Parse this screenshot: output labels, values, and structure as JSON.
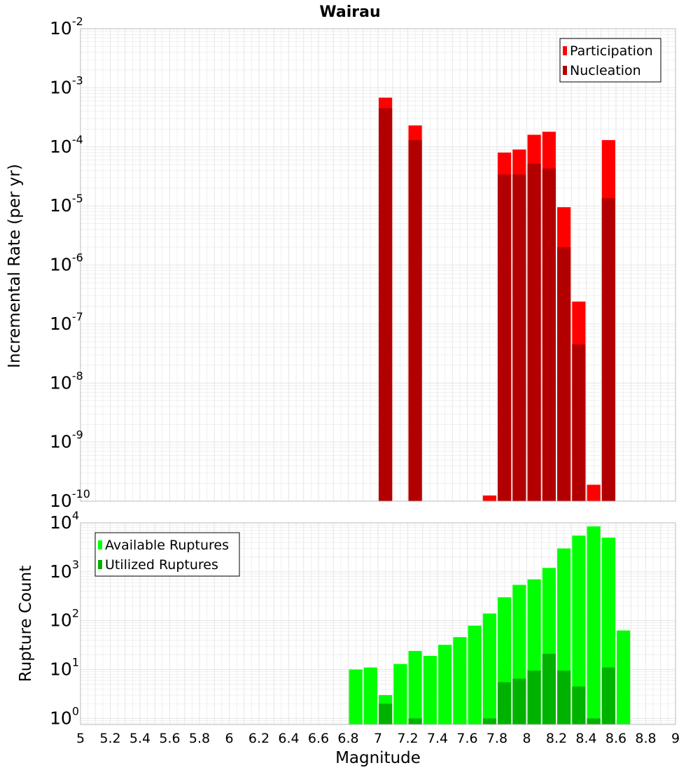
{
  "title": "Wairau",
  "colors": {
    "participation": "#ff0000",
    "nucleation": "#b20000",
    "available": "#00ff00",
    "utilized": "#00b200",
    "grid": "#e6e6e6",
    "frame": "#bbbbbb"
  },
  "chart_data": [
    {
      "type": "bar",
      "panel": "top",
      "ylabel": "Incremental Rate (per yr)",
      "yscale": "log",
      "ylim": [
        1e-10,
        0.01
      ],
      "xlim": [
        5,
        9
      ],
      "grid": true,
      "legend_position": "top-right",
      "y_ticks": [
        {
          "base": "10",
          "exp": "-2",
          "value": 0.01
        },
        {
          "base": "10",
          "exp": "-3",
          "value": 0.001
        },
        {
          "base": "10",
          "exp": "-4",
          "value": 0.0001
        },
        {
          "base": "10",
          "exp": "-5",
          "value": 1e-05
        },
        {
          "base": "10",
          "exp": "-6",
          "value": 1e-06
        },
        {
          "base": "10",
          "exp": "-7",
          "value": 1e-07
        },
        {
          "base": "10",
          "exp": "-8",
          "value": 1e-08
        },
        {
          "base": "10",
          "exp": "-9",
          "value": 1e-09
        },
        {
          "base": "10",
          "exp": "-10",
          "value": 1e-10
        }
      ],
      "series": [
        {
          "name": "Participation",
          "x": [
            7.05,
            7.25,
            7.75,
            7.85,
            7.95,
            8.05,
            8.15,
            8.25,
            8.35,
            8.45,
            8.55
          ],
          "values": [
            0.00068,
            0.00023,
            1.25e-10,
            8e-05,
            9e-05,
            0.00016,
            0.00018,
            9.5e-06,
            2.4e-07,
            1.9e-10,
            0.00013
          ]
        },
        {
          "name": "Nucleation",
          "x": [
            7.05,
            7.25,
            7.85,
            7.95,
            8.05,
            8.15,
            8.25,
            8.35,
            8.55
          ],
          "values": [
            0.00045,
            0.00013,
            3.4e-05,
            3.4e-05,
            5.2e-05,
            4.3e-05,
            2e-06,
            4.5e-08,
            1.35e-05
          ]
        }
      ]
    },
    {
      "type": "bar",
      "panel": "bottom",
      "ylabel": "Rupture Count",
      "xlabel": "Magnitude",
      "yscale": "log",
      "ylim": [
        0.75,
        10000
      ],
      "xlim": [
        5,
        9
      ],
      "grid": true,
      "legend_position": "top-left",
      "y_ticks": [
        {
          "base": "10",
          "exp": "4",
          "value": 10000
        },
        {
          "base": "10",
          "exp": "3",
          "value": 1000
        },
        {
          "base": "10",
          "exp": "2",
          "value": 100
        },
        {
          "base": "10",
          "exp": "1",
          "value": 10
        },
        {
          "base": "10",
          "exp": "0",
          "value": 1
        }
      ],
      "x_ticks": [
        "5",
        "5.2",
        "5.4",
        "5.6",
        "5.8",
        "6",
        "6.2",
        "6.4",
        "6.6",
        "6.8",
        "7",
        "7.2",
        "7.4",
        "7.6",
        "7.8",
        "8",
        "8.2",
        "8.4",
        "8.6",
        "8.8",
        "9"
      ],
      "series": [
        {
          "name": "Available Ruptures",
          "x": [
            6.85,
            6.95,
            7.05,
            7.15,
            7.25,
            7.35,
            7.45,
            7.55,
            7.65,
            7.75,
            7.85,
            7.95,
            8.05,
            8.15,
            8.25,
            8.35,
            8.45,
            8.55,
            8.65
          ],
          "values": [
            10,
            11,
            3,
            13,
            24,
            19,
            32,
            46,
            79,
            140,
            300,
            540,
            700,
            1200,
            3000,
            5500,
            8500,
            5000,
            63
          ]
        },
        {
          "name": "Utilized Ruptures",
          "x": [
            7.05,
            7.25,
            7.75,
            7.85,
            7.95,
            8.05,
            8.15,
            8.25,
            8.35,
            8.45,
            8.55
          ],
          "values": [
            2,
            1,
            1,
            5.5,
            6.5,
            9.5,
            21,
            9.5,
            4.5,
            1,
            11
          ]
        }
      ]
    }
  ]
}
